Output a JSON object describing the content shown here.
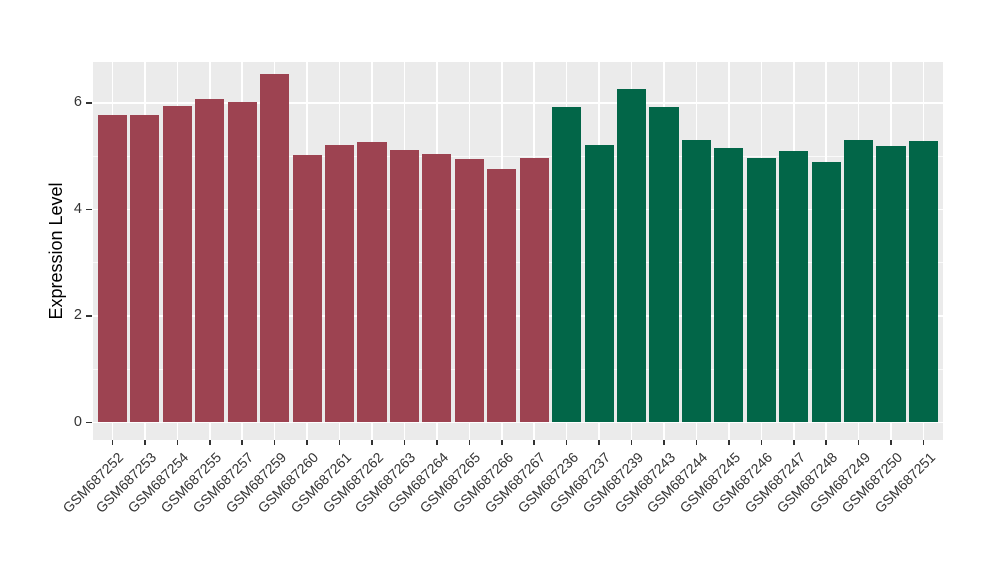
{
  "chart_data": {
    "type": "bar",
    "title": "",
    "ylabel": "Expression Level",
    "xlabel": "",
    "ylim": [
      -0.33,
      6.77
    ],
    "yticks": [
      0,
      2,
      4,
      6
    ],
    "yminor": [
      1,
      3,
      5
    ],
    "grid": "on",
    "legend": "none",
    "categories": [
      "GSM687252",
      "GSM687253",
      "GSM687254",
      "GSM687255",
      "GSM687257",
      "GSM687259",
      "GSM687260",
      "GSM687261",
      "GSM687262",
      "GSM687263",
      "GSM687264",
      "GSM687265",
      "GSM687266",
      "GSM687267",
      "GSM687236",
      "GSM687237",
      "GSM687239",
      "GSM687243",
      "GSM687244",
      "GSM687245",
      "GSM687246",
      "GSM687247",
      "GSM687248",
      "GSM687249",
      "GSM687250",
      "GSM687251"
    ],
    "values": [
      5.78,
      5.78,
      5.95,
      6.08,
      6.02,
      6.55,
      5.03,
      5.21,
      5.27,
      5.12,
      5.04,
      4.95,
      4.76,
      4.97,
      5.93,
      5.21,
      6.26,
      5.93,
      5.31,
      5.16,
      4.97,
      5.1,
      4.89,
      5.31,
      5.19,
      5.29
    ],
    "groups": [
      0,
      0,
      0,
      0,
      0,
      0,
      0,
      0,
      0,
      0,
      0,
      0,
      0,
      0,
      1,
      1,
      1,
      1,
      1,
      1,
      1,
      1,
      1,
      1,
      1,
      1
    ],
    "palette": [
      "#9D4351",
      "#026648"
    ],
    "style": {
      "panel_bg": "#EBEBEB",
      "grid_color": "#FFFFFF",
      "axis_text_color": "#333333",
      "title_color": "#000000",
      "tick_color": "#333333"
    }
  }
}
